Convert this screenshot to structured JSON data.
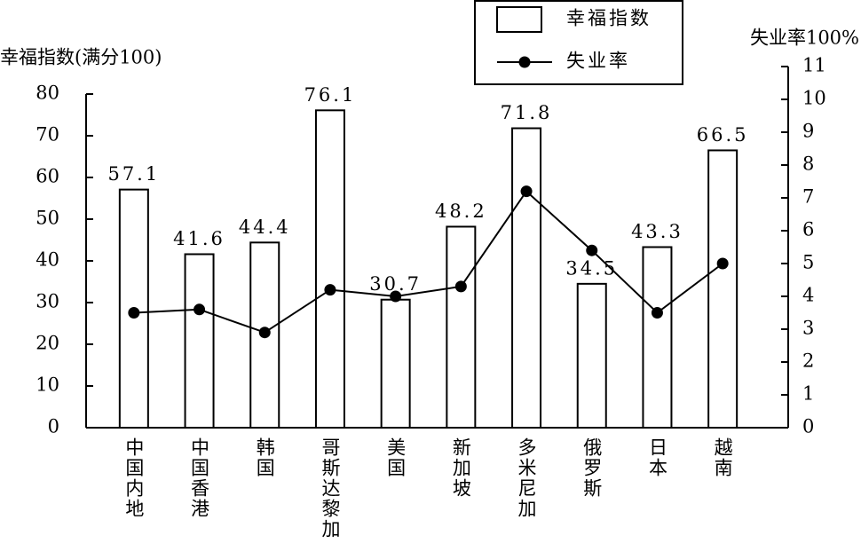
{
  "chart_data": {
    "type": "bar_line",
    "y_label": "幸福指数(满分100)",
    "y2_label": "失业率100%",
    "categories": [
      "中国内地",
      "中国香港",
      "韩国",
      "哥斯达黎加",
      "美国",
      "新加坡",
      "多米尼加",
      "俄罗斯",
      "日本",
      "越南"
    ],
    "series": [
      {
        "name": "幸福指数",
        "type": "bar",
        "color": "#ffffff",
        "values": [
          57.1,
          41.6,
          44.4,
          76.1,
          30.7,
          48.2,
          71.8,
          34.5,
          43.3,
          66.5
        ]
      },
      {
        "name": "失业率",
        "type": "line",
        "axis": "y2",
        "color": "#000000",
        "values": [
          3.5,
          3.6,
          2.9,
          4.2,
          4.0,
          4.3,
          7.2,
          5.4,
          3.5,
          5.0
        ]
      }
    ],
    "ylim": [
      0,
      80
    ],
    "yticks": [
      0,
      10,
      20,
      30,
      40,
      50,
      60,
      70,
      80
    ],
    "y2lim": [
      0,
      11
    ],
    "y2ticks": [
      0,
      1,
      2,
      3,
      4,
      5,
      6,
      7,
      8,
      9,
      10,
      11
    ]
  }
}
